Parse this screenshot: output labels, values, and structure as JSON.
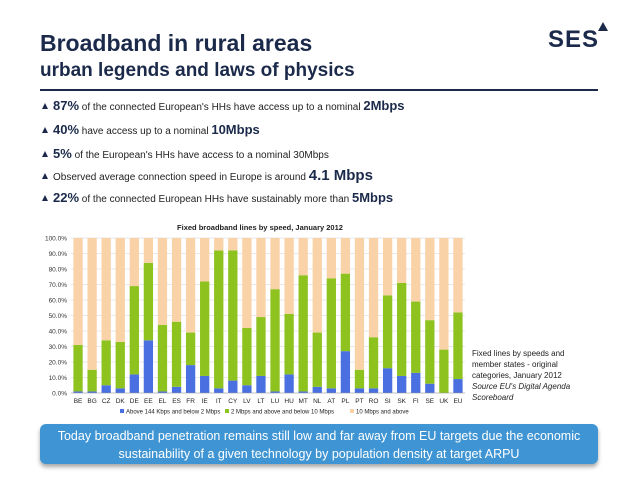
{
  "header": {
    "title": "Broadband in rural areas",
    "subtitle": "urban legends and laws of physics",
    "logo_text": "SES"
  },
  "bullets": [
    {
      "highlight": "87%",
      "text": " of the connected European's HHs have access up to a nominal ",
      "emphasis": "2Mbps"
    },
    {
      "highlight": "40%",
      "text": " have access up to a nominal ",
      "emphasis": "10Mbps"
    },
    {
      "highlight": "5%",
      "text": " of the European's HHs have access to a nominal 30Mbps",
      "emphasis": ""
    },
    {
      "highlight": "",
      "text": "Observed average connection speed in Europe is around ",
      "emphasis": "4.1 Mbps"
    },
    {
      "highlight": "22%",
      "text": " of the connected European HHs have sustainably more than ",
      "emphasis": "5Mbps"
    }
  ],
  "side_note": {
    "lines": [
      "Fixed lines by speeds and",
      "member states - original",
      "categories, January 2012"
    ],
    "source": [
      "Source EU's Digital Agenda",
      "Scoreboard"
    ]
  },
  "banner": {
    "line1": "Today broadband penetration remains still low and far away from EU targets due the economic",
    "line2": "sustainability of a given technology by population density at target ARPU"
  },
  "colors": {
    "brand": "#1b2a4a",
    "series_low": "#4a6fe0",
    "series_mid": "#8dc21f",
    "series_high": "#f9d2a8",
    "banner": "#3f95d4"
  },
  "chart_data": {
    "type": "bar",
    "stacked": true,
    "title": "Fixed broadband lines by speed, January 2012",
    "categories": [
      "BE",
      "BG",
      "CZ",
      "DK",
      "DE",
      "EE",
      "EL",
      "ES",
      "FR",
      "IE",
      "IT",
      "CY",
      "LV",
      "LT",
      "LU",
      "HU",
      "MT",
      "NL",
      "AT",
      "PL",
      "PT",
      "RO",
      "SI",
      "SK",
      "FI",
      "SE",
      "UK",
      "EU"
    ],
    "ylim": [
      0,
      100
    ],
    "yticks": [
      "0.0%",
      "10.0%",
      "20.0%",
      "30.0%",
      "40.0%",
      "50.0%",
      "60.0%",
      "70.0%",
      "80.0%",
      "90.0%",
      "100.0%"
    ],
    "ytick_values": [
      0,
      10,
      20,
      30,
      40,
      50,
      60,
      70,
      80,
      90,
      100
    ],
    "grid": true,
    "legend_position": "bottom",
    "series": [
      {
        "name": "Above 144 Kbps and below 2 Mbps",
        "color": "#4a6fe0",
        "values": [
          1,
          1,
          5,
          3,
          12,
          34,
          1,
          4,
          18,
          11,
          3,
          8,
          5,
          11,
          1,
          12,
          1,
          4,
          3,
          27,
          3,
          3,
          16,
          11,
          13,
          6,
          0,
          9
        ]
      },
      {
        "name": "2 Mbps and above and below 10 Mbps",
        "color": "#8dc21f",
        "values": [
          30,
          14,
          29,
          30,
          57,
          50,
          43,
          42,
          21,
          61,
          89,
          84,
          37,
          38,
          66,
          39,
          75,
          35,
          71,
          50,
          12,
          33,
          47,
          60,
          46,
          41,
          28,
          43
        ]
      },
      {
        "name": "10 Mbps and above",
        "color": "#f9d2a8",
        "values": [
          69,
          85,
          66,
          67,
          31,
          16,
          56,
          54,
          61,
          28,
          8,
          8,
          58,
          51,
          33,
          49,
          24,
          61,
          26,
          23,
          85,
          64,
          37,
          29,
          41,
          53,
          72,
          48
        ]
      }
    ]
  }
}
